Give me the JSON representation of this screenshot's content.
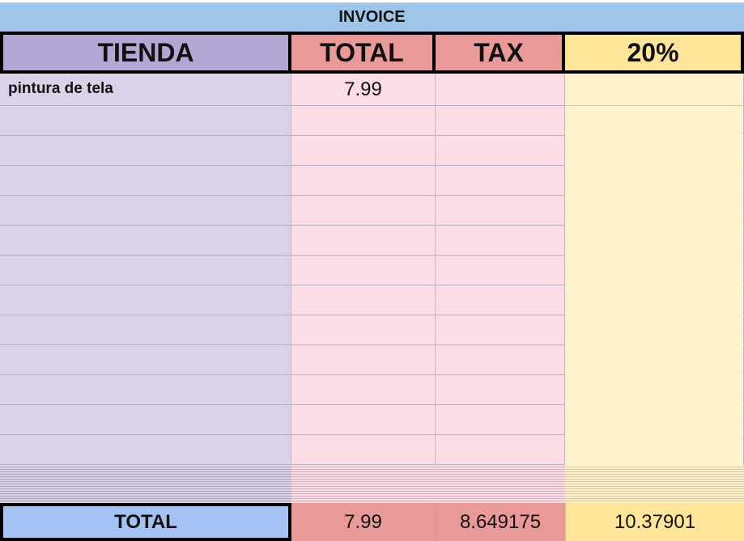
{
  "title": "INVOICE",
  "headers": [
    "TIENDA",
    "TOTAL",
    "TAX",
    "20%"
  ],
  "rows": [
    {
      "tienda": "pintura de tela",
      "total": "7.99",
      "tax": "",
      "pct": ""
    }
  ],
  "empty_rows": 12,
  "totals": {
    "label": "TOTAL",
    "total": "7.99",
    "tax": "8.649175",
    "pct": "10.37901"
  },
  "colors": {
    "invoice": "#9fc5e8",
    "tienda": "#b4a7d6",
    "total_tax": "#ea9999",
    "pct": "#ffe599",
    "total_label": "#a4c2f4"
  }
}
